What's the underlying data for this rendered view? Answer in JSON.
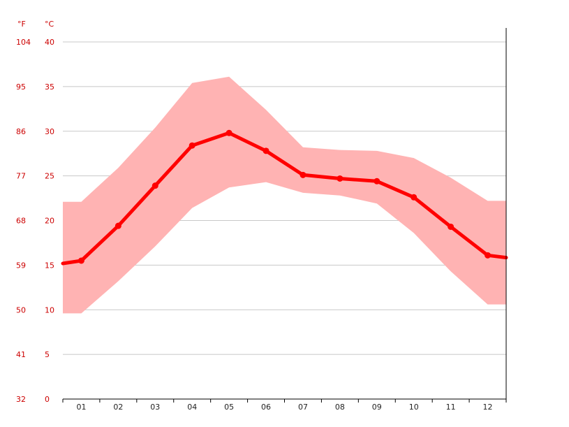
{
  "chart_data": {
    "type": "line",
    "categories": [
      "01",
      "02",
      "03",
      "04",
      "05",
      "06",
      "07",
      "08",
      "09",
      "10",
      "11",
      "12"
    ],
    "series": [
      {
        "values": [
          15.5,
          19.4,
          23.9,
          28.4,
          29.8,
          27.8,
          25.1,
          24.7,
          24.4,
          22.6,
          19.3,
          16.1
        ]
      },
      {
        "values": [
          22.1,
          25.9,
          30.4,
          35.4,
          36.1,
          32.4,
          28.2,
          27.9,
          27.8,
          27.0,
          24.8,
          22.2
        ]
      },
      {
        "values": [
          9.6,
          13.2,
          17.1,
          21.4,
          23.7,
          24.3,
          23.1,
          22.8,
          21.9,
          18.6,
          14.3,
          10.6
        ]
      }
    ],
    "y_celsius_ticks": [
      "0",
      "5",
      "10",
      "15",
      "20",
      "25",
      "30",
      "35",
      "40"
    ],
    "y_fahrenheit_ticks": [
      "32",
      "41",
      "50",
      "59",
      "68",
      "77",
      "86",
      "95",
      "104"
    ],
    "unit_fahrenheit": "°F",
    "unit_celsius": "°C",
    "ylim": [
      0,
      40
    ],
    "grid": true,
    "colors": {
      "line": "#ff0000",
      "band": "#ffb3b3",
      "axis_text": "#cc0000",
      "grid": "#c8c8c8"
    }
  }
}
